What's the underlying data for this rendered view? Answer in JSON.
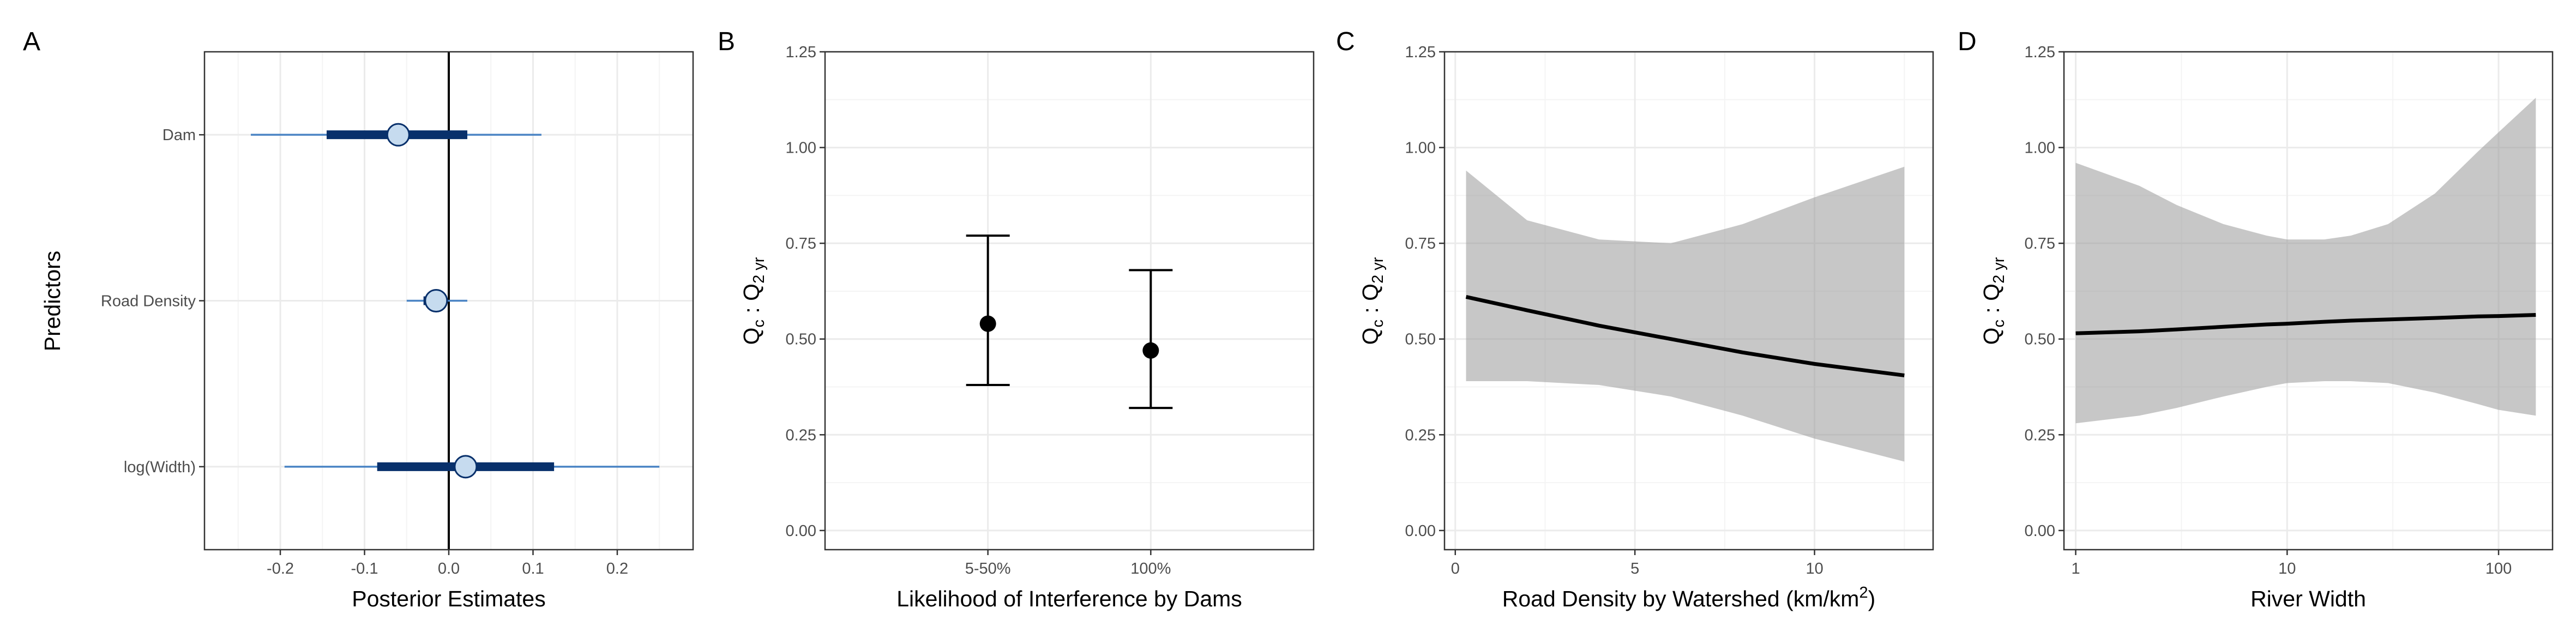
{
  "chart_data": [
    {
      "type": "forest",
      "panel_label": "A",
      "xlabel": "Posterior Estimates",
      "ylabel": "Predictors",
      "xlim": [
        -0.29,
        0.29
      ],
      "x_ticks": [
        "-0.2",
        "-0.1",
        "0.0",
        "0.1",
        "0.2"
      ],
      "x_tick_values": [
        -0.2,
        -0.1,
        0.0,
        0.1,
        0.2
      ],
      "categories": [
        "Dam",
        "Road Density",
        "log(Width)"
      ],
      "median": [
        -0.06,
        -0.015,
        0.02
      ],
      "inner_interval": [
        [
          -0.145,
          0.022
        ],
        [
          -0.03,
          -0.005
        ],
        [
          -0.085,
          0.125
        ]
      ],
      "outer_interval": [
        [
          -0.235,
          0.11
        ],
        [
          -0.05,
          0.022
        ],
        [
          -0.195,
          0.25
        ]
      ],
      "reference_line_x": 0,
      "colors": {
        "inner": "#08306b",
        "outer": "#4a84c4",
        "point_fill": "#c6dbef",
        "point_stroke": "#08306b"
      },
      "grid": true
    },
    {
      "type": "errorbar",
      "panel_label": "B",
      "xlabel": "Likelihood of Interference by Dams",
      "ylabel_main": "Q",
      "ylabel_main_sub": "c",
      "ylabel_sep": " : ",
      "ylabel_ref": "Q",
      "ylabel_ref_sub": "2 yr",
      "ylim": [
        -0.05,
        1.25
      ],
      "y_ticks": [
        "0.00",
        "0.25",
        "0.50",
        "0.75",
        "1.00",
        "1.25"
      ],
      "categories": [
        "5-50%",
        "100%"
      ],
      "values": [
        0.54,
        0.47
      ],
      "lower": [
        0.38,
        0.32
      ],
      "upper": [
        0.77,
        0.68
      ],
      "grid": true
    },
    {
      "type": "line",
      "panel_label": "C",
      "xlabel_main": "Road Density by Watershed (km/km",
      "xlabel_sup": "2",
      "xlabel_end": ")",
      "ylabel_main": "Q",
      "ylabel_main_sub": "c",
      "ylabel_sep": " : ",
      "ylabel_ref": "Q",
      "ylabel_ref_sub": "2 yr",
      "xlim": [
        -0.3,
        13.3
      ],
      "ylim": [
        -0.05,
        1.25
      ],
      "x_ticks": [
        "0",
        "5",
        "10"
      ],
      "x_tick_values": [
        0,
        5,
        10
      ],
      "y_ticks": [
        "0.00",
        "0.25",
        "0.50",
        "0.75",
        "1.00",
        "1.25"
      ],
      "x": [
        0.3,
        2.0,
        4.0,
        6.0,
        8.0,
        10.0,
        12.5
      ],
      "y": [
        0.61,
        0.575,
        0.535,
        0.5,
        0.465,
        0.435,
        0.405
      ],
      "band_lower": [
        0.39,
        0.39,
        0.38,
        0.35,
        0.3,
        0.24,
        0.18
      ],
      "band_upper": [
        0.94,
        0.81,
        0.76,
        0.75,
        0.8,
        0.87,
        0.95
      ],
      "grid": true
    },
    {
      "type": "line",
      "panel_label": "D",
      "xlabel": "River Width",
      "ylabel_main": "Q",
      "ylabel_main_sub": "c",
      "ylabel_sep": " : ",
      "ylabel_ref": "Q",
      "ylabel_ref_sub": "2 yr",
      "x_scale": "log10",
      "xlim": [
        0.88,
        180
      ],
      "ylim": [
        -0.05,
        1.25
      ],
      "x_ticks": [
        "1",
        "10",
        "100"
      ],
      "x_tick_values": [
        1,
        10,
        100
      ],
      "y_ticks": [
        "0.00",
        "0.25",
        "0.50",
        "0.75",
        "1.00",
        "1.25"
      ],
      "x": [
        1,
        2,
        3,
        5,
        8,
        10,
        15,
        20,
        30,
        50,
        80,
        100,
        150
      ],
      "y": [
        0.515,
        0.52,
        0.525,
        0.532,
        0.538,
        0.54,
        0.545,
        0.548,
        0.551,
        0.555,
        0.559,
        0.56,
        0.563
      ],
      "band_lower": [
        0.28,
        0.3,
        0.32,
        0.35,
        0.375,
        0.385,
        0.39,
        0.39,
        0.385,
        0.36,
        0.33,
        0.315,
        0.3
      ],
      "band_upper": [
        0.96,
        0.9,
        0.85,
        0.8,
        0.77,
        0.76,
        0.76,
        0.77,
        0.8,
        0.88,
        0.99,
        1.04,
        1.13
      ],
      "grid": true
    }
  ]
}
